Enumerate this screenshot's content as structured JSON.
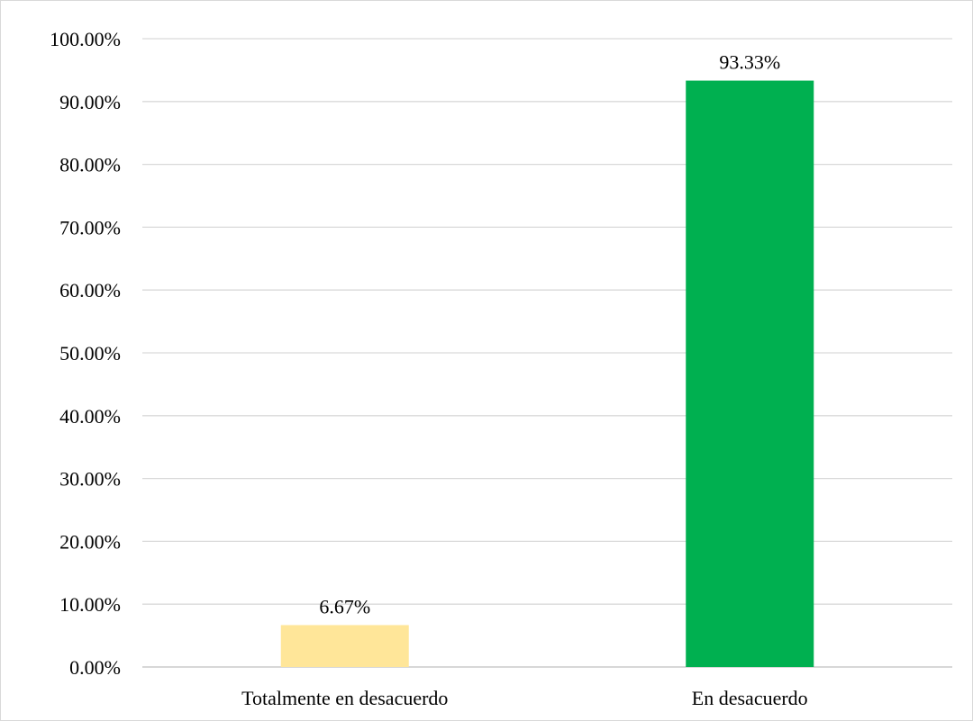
{
  "chart_data": {
    "type": "bar",
    "categories": [
      "Totalmente en desacuerdo",
      "En desacuerdo"
    ],
    "series": [
      {
        "values": [
          6.67,
          93.33
        ],
        "colors": [
          "#FFE699",
          "#00B050"
        ],
        "data_labels": [
          "6.67%",
          "93.33%"
        ]
      }
    ],
    "title": "",
    "xlabel": "",
    "ylabel": "",
    "ylim": [
      0,
      100
    ],
    "y_ticks": [
      0,
      10,
      20,
      30,
      40,
      50,
      60,
      70,
      80,
      90,
      100
    ],
    "y_tick_labels": [
      "0.00%",
      "10.00%",
      "20.00%",
      "30.00%",
      "40.00%",
      "50.00%",
      "60.00%",
      "70.00%",
      "80.00%",
      "90.00%",
      "100.00%"
    ],
    "grid": true,
    "legend": "none",
    "grid_color": "#D9D9D9",
    "axis_color": "#BFBFBF"
  }
}
